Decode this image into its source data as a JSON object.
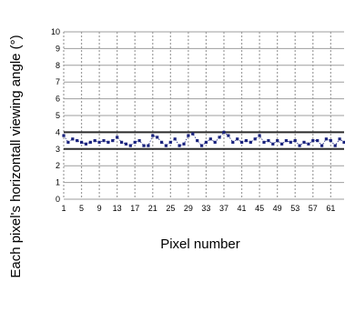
{
  "chart_data": {
    "type": "line",
    "title": "",
    "xlabel": "Pixel number",
    "ylabel": "Each pixel's horizontall viewing angle (°)",
    "ylim": [
      0,
      10
    ],
    "yticks": [
      0,
      1,
      2,
      3,
      4,
      5,
      6,
      7,
      8,
      9,
      10
    ],
    "xlim": [
      1,
      64
    ],
    "xticks": [
      1,
      5,
      9,
      13,
      17,
      21,
      25,
      29,
      33,
      37,
      41,
      45,
      49,
      53,
      57,
      61
    ],
    "grid": true,
    "reference_lines": [
      3,
      4
    ],
    "colors": {
      "series": "#1a237e",
      "grid": "#9e9e9e",
      "reference": "#2b2b2b"
    },
    "series": [
      {
        "x": [
          1,
          2,
          3,
          4,
          5,
          6,
          7,
          8,
          9,
          10,
          11,
          12,
          13,
          14,
          15,
          16,
          17,
          18,
          19,
          20,
          21,
          22,
          23,
          24,
          25,
          26,
          27,
          28,
          29,
          30,
          31,
          32,
          33,
          34,
          35,
          36,
          37,
          38,
          39,
          40,
          41,
          42,
          43,
          44,
          45,
          46,
          47,
          48,
          49,
          50,
          51,
          52,
          53,
          54,
          55,
          56,
          57,
          58,
          59,
          60,
          61,
          62,
          63,
          64
        ],
        "values": [
          3.8,
          3.4,
          3.6,
          3.5,
          3.4,
          3.3,
          3.4,
          3.5,
          3.4,
          3.5,
          3.4,
          3.5,
          3.7,
          3.4,
          3.3,
          3.2,
          3.4,
          3.5,
          3.2,
          3.2,
          3.8,
          3.7,
          3.4,
          3.2,
          3.4,
          3.6,
          3.2,
          3.3,
          3.8,
          3.9,
          3.5,
          3.2,
          3.4,
          3.6,
          3.4,
          3.7,
          4.0,
          3.8,
          3.4,
          3.6,
          3.4,
          3.5,
          3.4,
          3.6,
          3.8,
          3.4,
          3.5,
          3.3,
          3.5,
          3.3,
          3.5,
          3.4,
          3.5,
          3.2,
          3.4,
          3.3,
          3.5,
          3.5,
          3.2,
          3.6,
          3.5,
          3.2,
          3.6,
          3.4
        ]
      }
    ]
  }
}
